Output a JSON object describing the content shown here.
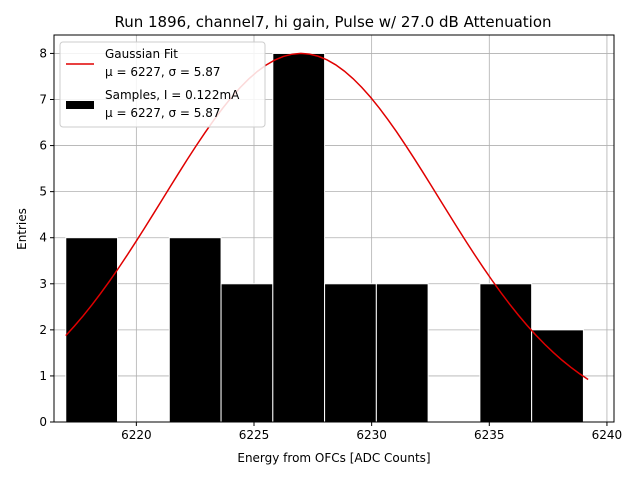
{
  "chart_data": {
    "type": "bar",
    "title": "Run 1896, channel7, hi gain, Pulse w/ 27.0 dB Attenuation",
    "xlabel": "Energy from OFCs [ADC Counts]",
    "ylabel": "Entries",
    "xlim": [
      6216.5,
      6240.3
    ],
    "ylim": [
      0,
      8.4
    ],
    "xticks": [
      6220,
      6225,
      6230,
      6235,
      6240
    ],
    "yticks": [
      0,
      1,
      2,
      3,
      4,
      5,
      6,
      7,
      8
    ],
    "grid": true,
    "legend_position": "top-left",
    "histogram": {
      "name": "Samples, I = 0.122mA",
      "name_stats": "μ = 6227, σ = 5.87",
      "color": "#000000",
      "bins": [
        {
          "x0": 6217.0,
          "x1": 6219.2,
          "count": 4
        },
        {
          "x0": 6219.2,
          "x1": 6221.4,
          "count": 0
        },
        {
          "x0": 6221.4,
          "x1": 6223.6,
          "count": 4
        },
        {
          "x0": 6223.6,
          "x1": 6225.8,
          "count": 3
        },
        {
          "x0": 6225.8,
          "x1": 6228.0,
          "count": 8
        },
        {
          "x0": 6228.0,
          "x1": 6230.2,
          "count": 3
        },
        {
          "x0": 6230.2,
          "x1": 6232.4,
          "count": 3
        },
        {
          "x0": 6232.4,
          "x1": 6234.6,
          "count": 0
        },
        {
          "x0": 6234.6,
          "x1": 6236.8,
          "count": 3
        },
        {
          "x0": 6236.8,
          "x1": 6239.0,
          "count": 2
        }
      ]
    },
    "fit": {
      "name": "Gaussian Fit",
      "name_stats": "μ = 6227, σ = 5.87",
      "color": "#e00000",
      "mu": 6227,
      "sigma": 5.87,
      "amplitude": 8.0,
      "x_range": [
        6217.0,
        6239.2
      ]
    }
  }
}
